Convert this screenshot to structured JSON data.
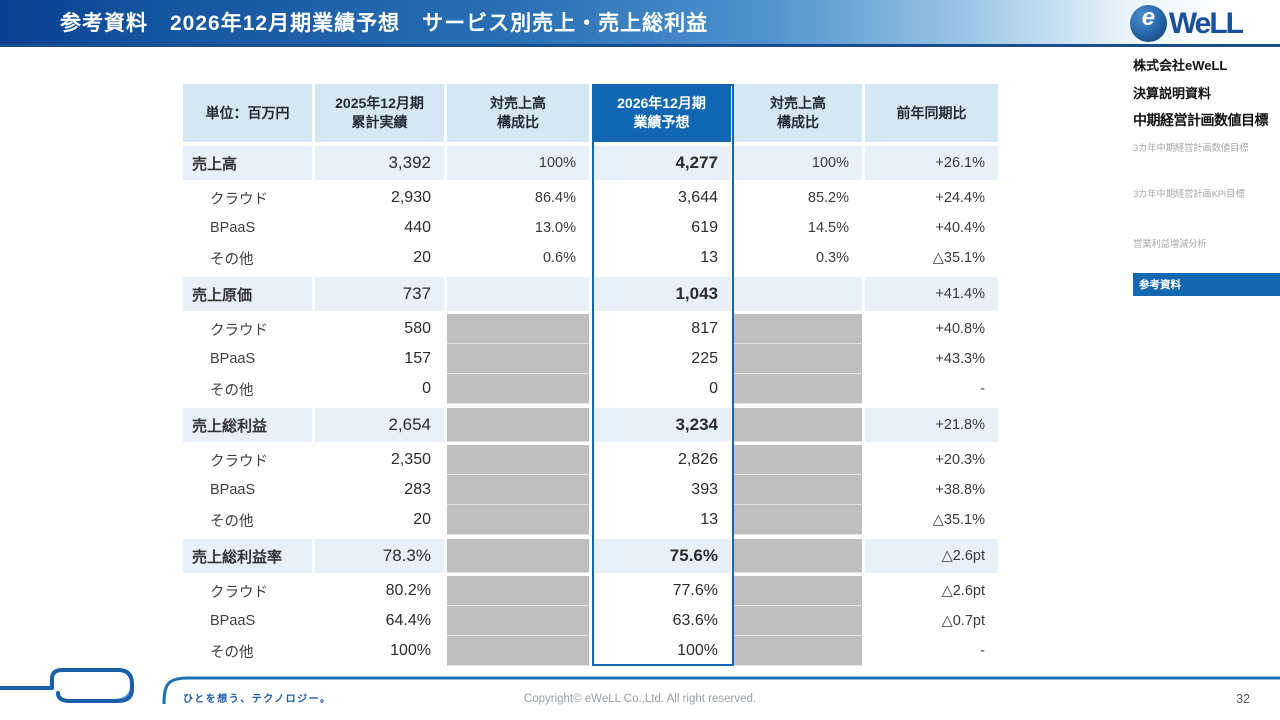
{
  "header": {
    "title": "参考資料　2026年12月期業績予想　サービス別売上・売上総利益"
  },
  "logo": {
    "globe_letter": "e",
    "wordmark": "WeLL"
  },
  "sidebar": {
    "items": [
      {
        "label": "株式会社eWeLL",
        "style": "heading"
      },
      {
        "label": "決算説明資料",
        "style": "heading"
      },
      {
        "label": "中期経営計画数値目標",
        "style": "heading-lg"
      },
      {
        "label": "3カ年中期経営計画数値目標",
        "style": "sub"
      },
      {
        "label": "3カ年中期経営計画KPI目標",
        "style": "sub"
      },
      {
        "label": "営業利益増減分析",
        "style": "sub"
      },
      {
        "label": "参考資料",
        "style": "active"
      }
    ]
  },
  "table": {
    "headers": [
      {
        "lines": [
          "単位：百万円"
        ],
        "highlight": false
      },
      {
        "lines": [
          "2025年12月期",
          "累計実績"
        ],
        "highlight": false
      },
      {
        "lines": [
          "対売上高",
          "構成比"
        ],
        "highlight": false
      },
      {
        "lines": [
          "2026年12月期",
          "業績予想"
        ],
        "highlight": true
      },
      {
        "lines": [
          "対売上高",
          "構成比"
        ],
        "highlight": false
      },
      {
        "lines": [
          "前年同期比"
        ],
        "highlight": false
      }
    ],
    "rows": [
      {
        "label": "売上高",
        "section": true,
        "gray": false,
        "v_actual": "3,392",
        "pct_actual": "100%",
        "v_forecast": "4,277",
        "pct_forecast": "100%",
        "yoy": "+26.1%"
      },
      {
        "label": "クラウド",
        "section": false,
        "gray": false,
        "v_actual": "2,930",
        "pct_actual": "86.4%",
        "v_forecast": "3,644",
        "pct_forecast": "85.2%",
        "yoy": "+24.4%"
      },
      {
        "label": "BPaaS",
        "section": false,
        "gray": false,
        "v_actual": "440",
        "pct_actual": "13.0%",
        "v_forecast": "619",
        "pct_forecast": "14.5%",
        "yoy": "+40.4%"
      },
      {
        "label": "その他",
        "section": false,
        "gray": false,
        "v_actual": "20",
        "pct_actual": "0.6%",
        "v_forecast": "13",
        "pct_forecast": "0.3%",
        "yoy": "△35.1%"
      },
      {
        "label": "売上原価",
        "section": true,
        "gray": false,
        "v_actual": "737",
        "pct_actual": "",
        "v_forecast": "1,043",
        "pct_forecast": "",
        "yoy": "+41.4%"
      },
      {
        "label": "クラウド",
        "section": false,
        "gray": true,
        "v_actual": "580",
        "pct_actual": "",
        "v_forecast": "817",
        "pct_forecast": "",
        "yoy": "+40.8%"
      },
      {
        "label": "BPaaS",
        "section": false,
        "gray": true,
        "v_actual": "157",
        "pct_actual": "",
        "v_forecast": "225",
        "pct_forecast": "",
        "yoy": "+43.3%"
      },
      {
        "label": "その他",
        "section": false,
        "gray": true,
        "v_actual": "0",
        "pct_actual": "",
        "v_forecast": "0",
        "pct_forecast": "",
        "yoy": "-"
      },
      {
        "label": "売上総利益",
        "section": true,
        "gray": true,
        "v_actual": "2,654",
        "pct_actual": "",
        "v_forecast": "3,234",
        "pct_forecast": "",
        "yoy": "+21.8%"
      },
      {
        "label": "クラウド",
        "section": false,
        "gray": true,
        "v_actual": "2,350",
        "pct_actual": "",
        "v_forecast": "2,826",
        "pct_forecast": "",
        "yoy": "+20.3%"
      },
      {
        "label": "BPaaS",
        "section": false,
        "gray": true,
        "v_actual": "283",
        "pct_actual": "",
        "v_forecast": "393",
        "pct_forecast": "",
        "yoy": "+38.8%"
      },
      {
        "label": "その他",
        "section": false,
        "gray": true,
        "v_actual": "20",
        "pct_actual": "",
        "v_forecast": "13",
        "pct_forecast": "",
        "yoy": "△35.1%"
      },
      {
        "label": "売上総利益率",
        "section": true,
        "gray": true,
        "v_actual": "78.3%",
        "pct_actual": "",
        "v_forecast": "75.6%",
        "pct_forecast": "",
        "yoy": "△2.6pt"
      },
      {
        "label": "クラウド",
        "section": false,
        "gray": true,
        "v_actual": "80.2%",
        "pct_actual": "",
        "v_forecast": "77.6%",
        "pct_forecast": "",
        "yoy": "△2.6pt"
      },
      {
        "label": "BPaaS",
        "section": false,
        "gray": true,
        "v_actual": "64.4%",
        "pct_actual": "",
        "v_forecast": "63.6%",
        "pct_forecast": "",
        "yoy": "△0.7pt"
      },
      {
        "label": "その他",
        "section": false,
        "gray": true,
        "v_actual": "100%",
        "pct_actual": "",
        "v_forecast": "100%",
        "pct_forecast": "",
        "yoy": "-"
      }
    ]
  },
  "footer": {
    "tagline": "ひとを想う、テクノロジー。",
    "copyright": "Copyright© eWeLL Co.,Ltd. All right reserved.",
    "page_number": "32"
  },
  "colors": {
    "accent_blue": "#1167b1",
    "band_dark_blue": "#0a3f8f",
    "band_mid_blue": "#2a6fb4",
    "header_cell_blue": "#d6e7f4",
    "section_row_blue": "#e8f1f9",
    "masked_cell_gray": "#bfbfbf",
    "sidebar_active_blue": "#1368b0",
    "logo_blue": "#1a4fa0"
  }
}
